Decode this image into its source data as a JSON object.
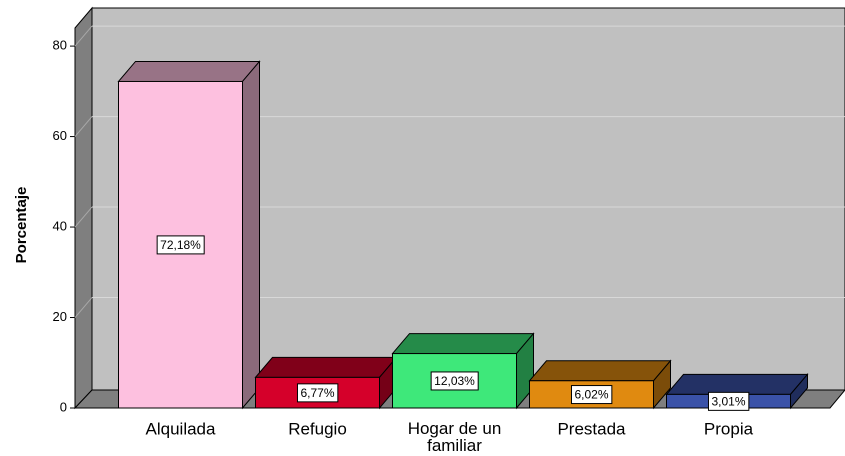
{
  "chart_data": {
    "type": "bar3d",
    "y_label": "Porcentaje",
    "categories": [
      "Alquilada",
      "Refugio",
      "Hogar de un familiar",
      "Prestada",
      "Propia"
    ],
    "values": [
      72.18,
      6.77,
      12.03,
      6.02,
      3.01
    ],
    "value_labels": [
      "72,18%",
      "6,77%",
      "12,03%",
      "6,02%",
      "3,01%"
    ],
    "colors": [
      "#fdc0df",
      "#d5002a",
      "#3ee87a",
      "#e08a10",
      "#3a52a8"
    ],
    "ylim": [
      0,
      84
    ],
    "yticks": [
      0,
      20,
      40,
      60,
      80
    ],
    "grid": true
  }
}
